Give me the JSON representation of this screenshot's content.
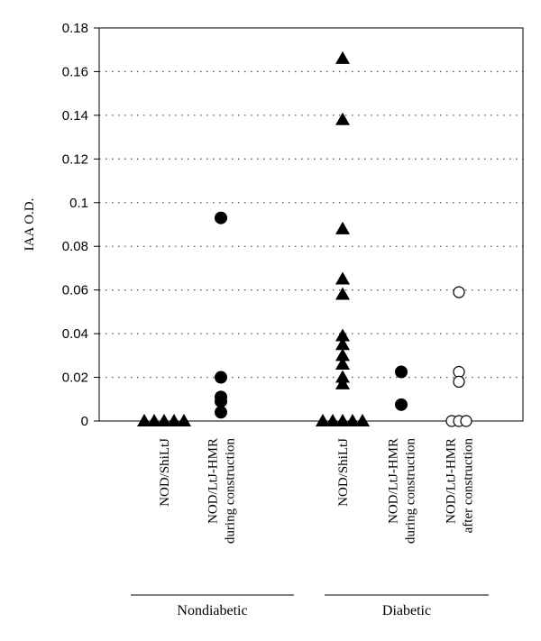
{
  "chart_data": {
    "type": "scatter",
    "ylabel": "IAA O.D.",
    "ylim": [
      0,
      0.18
    ],
    "yticks": [
      "0",
      "0.02",
      "0.04",
      "0.06",
      "0.08",
      "0.1",
      "0.12",
      "0.14",
      "0.16",
      "0.18"
    ],
    "grid": "horizontal dotted",
    "categories": [
      {
        "lines": [
          "NOD/ShiLtJ"
        ],
        "marker": "triangle-filled",
        "values": [
          0,
          0,
          0,
          0,
          0
        ]
      },
      {
        "lines": [
          "NOD/LtJ-HMR",
          "during construction"
        ],
        "marker": "circle-filled",
        "values": [
          0.093,
          0.02,
          0.011,
          0.009,
          0.004
        ]
      },
      {
        "lines": [
          "NOD/ShiLtJ"
        ],
        "marker": "triangle-filled",
        "values": [
          0.166,
          0.138,
          0.088,
          0.065,
          0.058,
          0.039,
          0.035,
          0.03,
          0.026,
          0.02,
          0.017,
          0,
          0,
          0,
          0,
          0
        ]
      },
      {
        "lines": [
          "NOD/LtJ-HMR",
          "during construction"
        ],
        "marker": "circle-filled",
        "values": [
          0.0225,
          0.0075
        ]
      },
      {
        "lines": [
          "NOD/LtJ-HMR",
          "after construction"
        ],
        "marker": "circle-open",
        "values": [
          0.059,
          0.0225,
          0.018,
          0,
          0,
          0
        ]
      }
    ],
    "groups": [
      {
        "label": "Nondiabetic",
        "categories": [
          0,
          1
        ]
      },
      {
        "label": "Diabetic",
        "categories": [
          2,
          3,
          4
        ]
      }
    ]
  }
}
